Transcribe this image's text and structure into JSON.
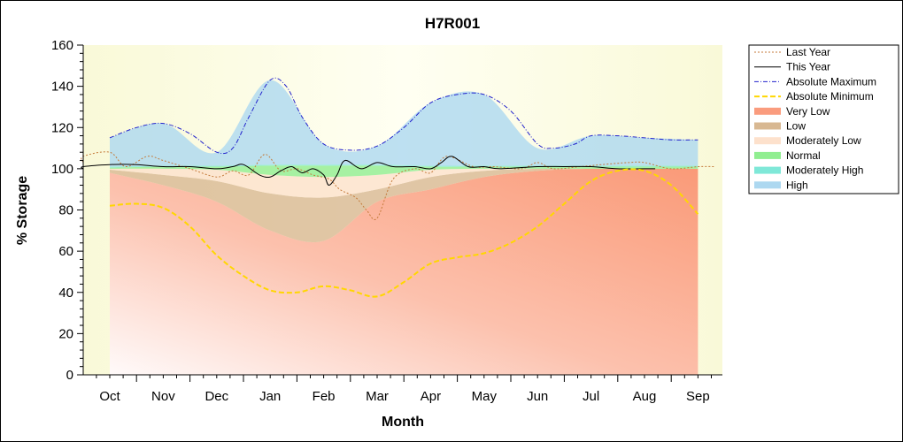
{
  "chart_data": {
    "type": "line",
    "title": "H7R001",
    "xlabel": "Month",
    "ylabel": "% Storage",
    "ylim": [
      0,
      160
    ],
    "yticks": [
      0,
      20,
      40,
      60,
      80,
      100,
      120,
      140,
      160
    ],
    "categories": [
      "Oct",
      "Nov",
      "Dec",
      "Jan",
      "Feb",
      "Mar",
      "Apr",
      "May",
      "Jun",
      "Jul",
      "Aug",
      "Sep"
    ],
    "grid": false,
    "legend_position": "right",
    "bands": [
      {
        "name": "Very Low",
        "color": "#fa9c7e",
        "lower": [
          0,
          0,
          0,
          0,
          0,
          0,
          0,
          0,
          0,
          0,
          0,
          0
        ],
        "upper": [
          98,
          92,
          84,
          70,
          65,
          84,
          90,
          96,
          99,
          100,
          100,
          100
        ]
      },
      {
        "name": "Low",
        "color": "#d8b892",
        "lower": [
          98,
          92,
          84,
          70,
          65,
          84,
          90,
          96,
          99,
          100,
          100,
          100
        ],
        "upper": [
          99.5,
          97,
          94,
          88,
          86,
          90,
          96,
          99,
          100,
          100,
          100,
          100
        ]
      },
      {
        "name": "Moderately Low",
        "color": "#fde1cc",
        "lower": [
          99.5,
          97,
          94,
          88,
          86,
          90,
          96,
          99,
          100,
          100,
          100,
          100
        ],
        "upper": [
          100,
          100,
          99.5,
          97,
          96,
          97,
          99.5,
          100,
          100,
          100,
          100,
          100
        ]
      },
      {
        "name": "Normal",
        "color": "#90ee90",
        "lower": [
          100,
          100,
          99.5,
          97,
          96,
          97,
          99.5,
          100,
          100,
          100,
          100,
          100
        ],
        "upper": [
          100.5,
          101,
          101,
          101.5,
          101.5,
          101.5,
          101,
          101,
          101,
          101,
          101,
          101
        ]
      },
      {
        "name": "Moderately High",
        "color": "#7fe8d8",
        "lower": [
          100.5,
          101,
          101,
          101.5,
          101.5,
          101.5,
          101,
          101,
          101,
          101,
          101,
          101
        ],
        "upper": [
          101,
          101.5,
          101.5,
          102,
          102,
          102,
          101.5,
          101.5,
          101.5,
          101.5,
          101.5,
          101.5
        ]
      },
      {
        "name": "High",
        "color": "#add8f0",
        "lower": [
          101,
          101.5,
          101.5,
          102,
          102,
          102,
          101.5,
          101.5,
          101.5,
          101.5,
          101.5,
          101.5
        ],
        "upper": [
          115,
          122,
          108,
          143,
          112,
          111,
          132,
          136,
          110,
          116,
          115,
          114
        ]
      }
    ],
    "series": [
      {
        "name": "Last Year",
        "color": "#c47a3a",
        "style": "dotted",
        "x": [
          -1,
          -0.5,
          0,
          0.3,
          0.7,
          1,
          1.5,
          2,
          2.3,
          2.6,
          2.9,
          3.2,
          3.5,
          3.8,
          4.1,
          4.3,
          4.6,
          4.8,
          5.0,
          5.3,
          5.7,
          6.0,
          6.3,
          6.8,
          7.2,
          7.7,
          8.0,
          8.3,
          8.8,
          9.2,
          9.7,
          10.0,
          10.5,
          11.0,
          11.3
        ],
        "y": [
          103,
          106,
          108,
          101,
          106,
          104,
          100,
          96,
          99,
          97,
          107,
          99,
          100,
          97,
          95,
          90,
          86,
          80,
          76,
          95,
          100,
          98,
          106,
          101,
          101,
          100,
          103,
          100,
          101,
          102,
          103,
          103,
          100,
          101,
          101
        ]
      },
      {
        "name": "This Year",
        "color": "#000000",
        "style": "solid",
        "x": [
          -1,
          -0.5,
          0,
          0.5,
          1,
          1.5,
          2,
          2.3,
          2.5,
          2.8,
          3.0,
          3.2,
          3.4,
          3.6,
          3.8,
          4.0,
          4.1,
          4.25,
          4.4,
          4.7,
          5.0,
          5.3,
          5.7,
          6.0,
          6.2,
          6.4,
          6.7,
          7.0,
          7.3,
          8.0,
          8.5,
          9.0,
          9.5,
          10.0,
          10.2
        ],
        "y": [
          100,
          101,
          102,
          102,
          101,
          101,
          100,
          101,
          102,
          97,
          96,
          99,
          101,
          98,
          100,
          97,
          92,
          97,
          104,
          100,
          103,
          101,
          101,
          100,
          103,
          106,
          101,
          101,
          100,
          101,
          101,
          101,
          100,
          100,
          100
        ]
      },
      {
        "name": "Absolute Maximum",
        "color": "#2222cc",
        "style": "dashdot",
        "x": [
          0,
          0.5,
          1,
          1.5,
          2,
          2.3,
          2.6,
          3.0,
          3.3,
          3.6,
          4.0,
          4.5,
          5.0,
          5.5,
          6.0,
          6.5,
          7.0,
          7.5,
          8.0,
          8.3,
          8.7,
          9.0,
          9.5,
          10.0,
          10.5,
          11.0
        ],
        "y": [
          115,
          120,
          122,
          117,
          108,
          110,
          125,
          143,
          140,
          125,
          112,
          109,
          111,
          120,
          132,
          136,
          136,
          128,
          112,
          110,
          112,
          116,
          116,
          115,
          114,
          114
        ]
      },
      {
        "name": "Absolute Minimum",
        "color": "#ffd700",
        "style": "dashed",
        "x": [
          0,
          0.5,
          1,
          1.5,
          2,
          2.5,
          3,
          3.5,
          4,
          4.5,
          5,
          5.5,
          6,
          6.5,
          7,
          7.5,
          8,
          8.5,
          9,
          9.5,
          10,
          10.5,
          11
        ],
        "y": [
          82,
          83,
          81,
          72,
          58,
          48,
          41,
          40,
          43,
          41,
          38,
          45,
          54,
          57,
          59,
          64,
          72,
          83,
          94,
          99,
          99,
          92,
          78
        ]
      }
    ],
    "legend": [
      {
        "label": "Last Year",
        "kind": "line",
        "color": "#c47a3a",
        "style": "dotted"
      },
      {
        "label": "This Year",
        "kind": "line",
        "color": "#000000",
        "style": "solid"
      },
      {
        "label": "Absolute Maximum",
        "kind": "line",
        "color": "#2222cc",
        "style": "dashdot"
      },
      {
        "label": "Absolute Minimum",
        "kind": "line",
        "color": "#ffd700",
        "style": "dashed"
      },
      {
        "label": "Very Low",
        "kind": "area",
        "color": "#fa9c7e"
      },
      {
        "label": "Low",
        "kind": "area",
        "color": "#d8b892"
      },
      {
        "label": "Moderately Low",
        "kind": "area",
        "color": "#fde1cc"
      },
      {
        "label": "Normal",
        "kind": "area",
        "color": "#90ee90"
      },
      {
        "label": "Moderately High",
        "kind": "area",
        "color": "#7fe8d8"
      },
      {
        "label": "High",
        "kind": "area",
        "color": "#add8f0"
      }
    ]
  }
}
